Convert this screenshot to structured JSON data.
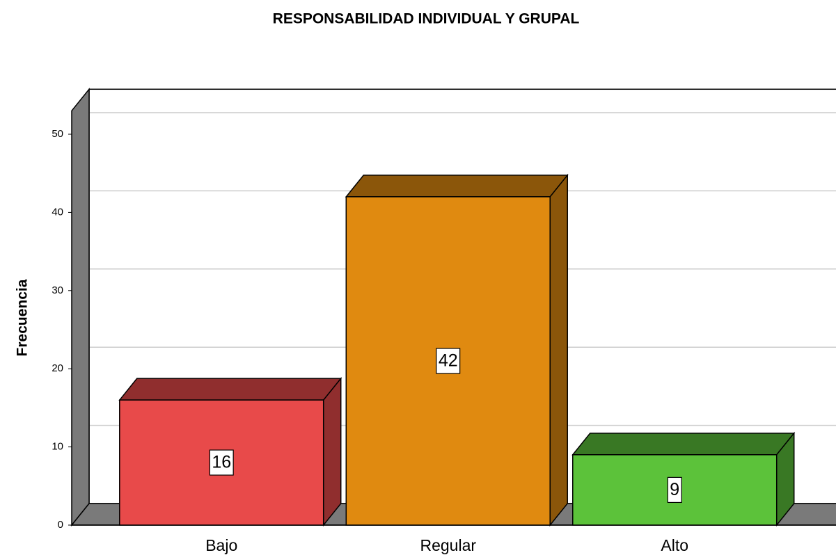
{
  "chart_data": {
    "type": "bar3d",
    "title": "RESPONSABILIDAD INDIVIDUAL Y GRUPAL",
    "y_label": "Frecuencia",
    "categories": [
      "Bajo",
      "Regular",
      "Alto"
    ],
    "values": [
      16,
      42,
      9
    ],
    "colors": [
      "#e84a4a",
      "#e08a10",
      "#5cc23a"
    ],
    "ylim": [
      0,
      53
    ],
    "yticks": [
      0,
      10,
      20,
      30,
      40,
      50
    ],
    "grid": true
  }
}
